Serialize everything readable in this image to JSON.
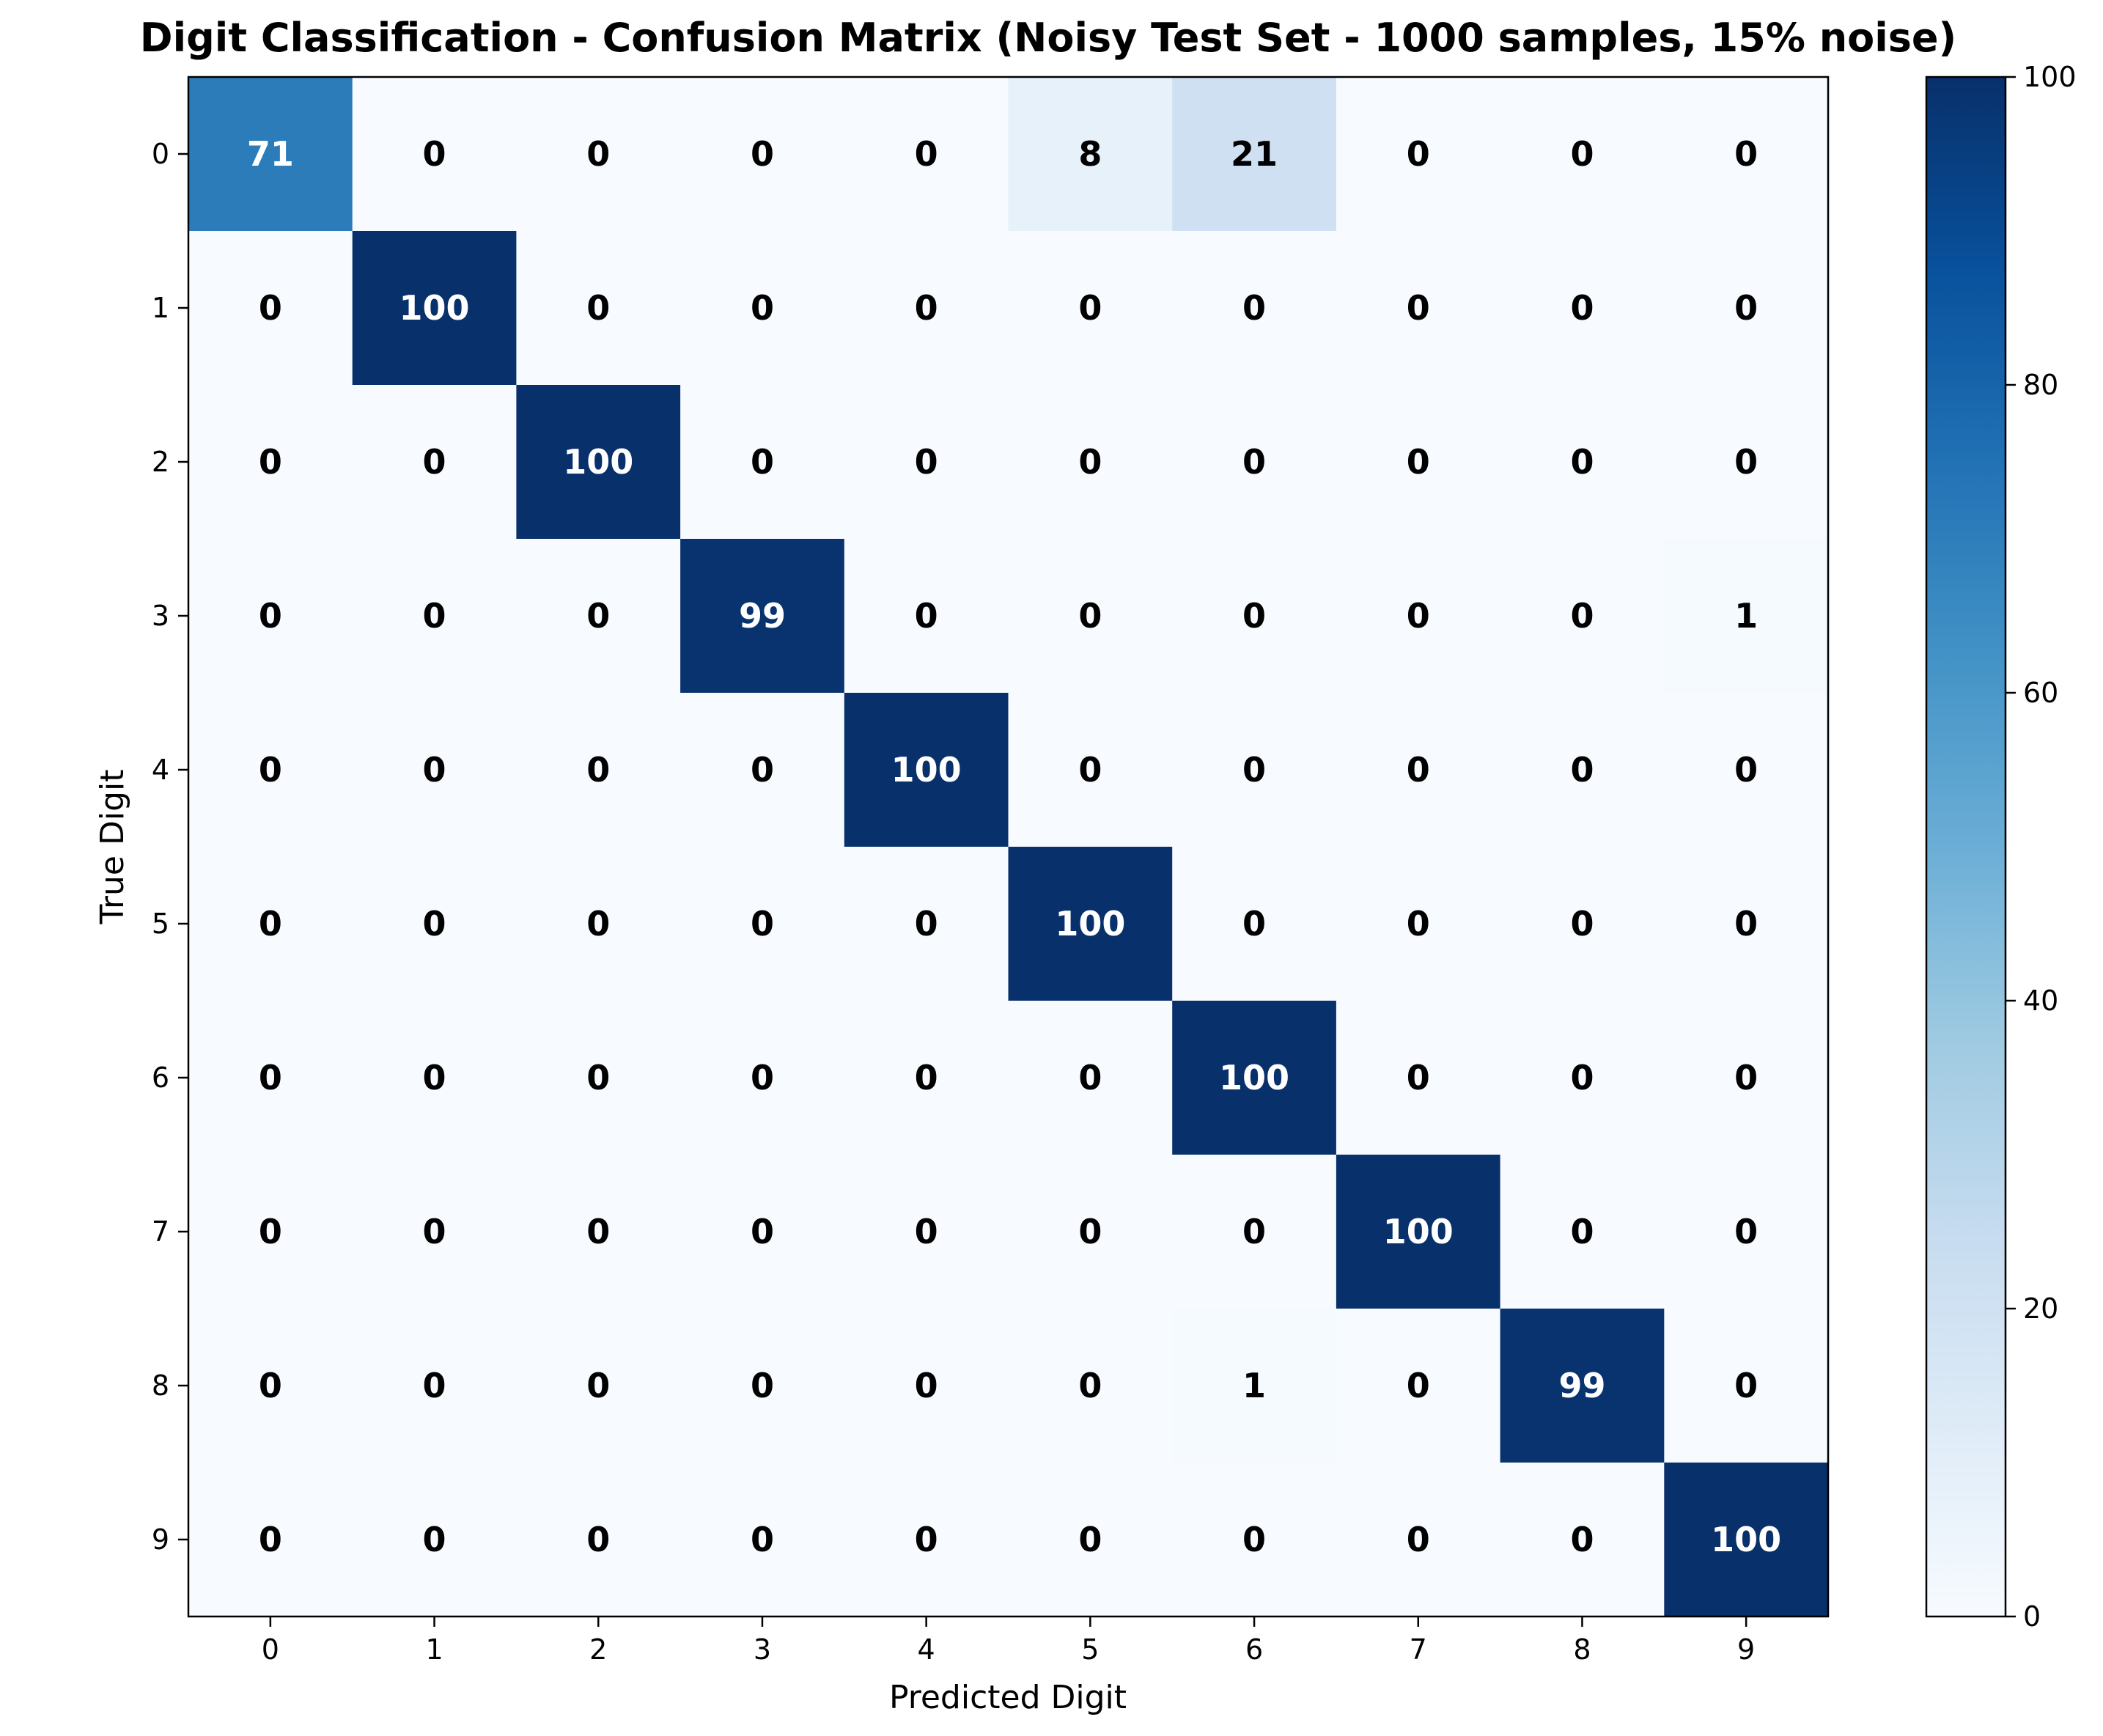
{
  "chart_data": {
    "type": "heatmap",
    "title": "Digit Classification - Confusion Matrix (Noisy Test Set - 1000 samples, 15% noise)",
    "xlabel": "Predicted Digit",
    "ylabel": "True Digit",
    "x_categories": [
      "0",
      "1",
      "2",
      "3",
      "4",
      "5",
      "6",
      "7",
      "8",
      "9"
    ],
    "y_categories": [
      "0",
      "1",
      "2",
      "3",
      "4",
      "5",
      "6",
      "7",
      "8",
      "9"
    ],
    "values": [
      [
        71,
        0,
        0,
        0,
        0,
        8,
        21,
        0,
        0,
        0
      ],
      [
        0,
        100,
        0,
        0,
        0,
        0,
        0,
        0,
        0,
        0
      ],
      [
        0,
        0,
        100,
        0,
        0,
        0,
        0,
        0,
        0,
        0
      ],
      [
        0,
        0,
        0,
        99,
        0,
        0,
        0,
        0,
        0,
        1
      ],
      [
        0,
        0,
        0,
        0,
        100,
        0,
        0,
        0,
        0,
        0
      ],
      [
        0,
        0,
        0,
        0,
        0,
        100,
        0,
        0,
        0,
        0
      ],
      [
        0,
        0,
        0,
        0,
        0,
        0,
        100,
        0,
        0,
        0
      ],
      [
        0,
        0,
        0,
        0,
        0,
        0,
        0,
        100,
        0,
        0
      ],
      [
        0,
        0,
        0,
        0,
        0,
        0,
        1,
        0,
        99,
        0
      ],
      [
        0,
        0,
        0,
        0,
        0,
        0,
        0,
        0,
        0,
        100
      ]
    ],
    "colormap": "Blues",
    "colorbar": {
      "range": [
        0,
        100
      ],
      "ticks": [
        0,
        20,
        40,
        60,
        80,
        100
      ]
    }
  }
}
